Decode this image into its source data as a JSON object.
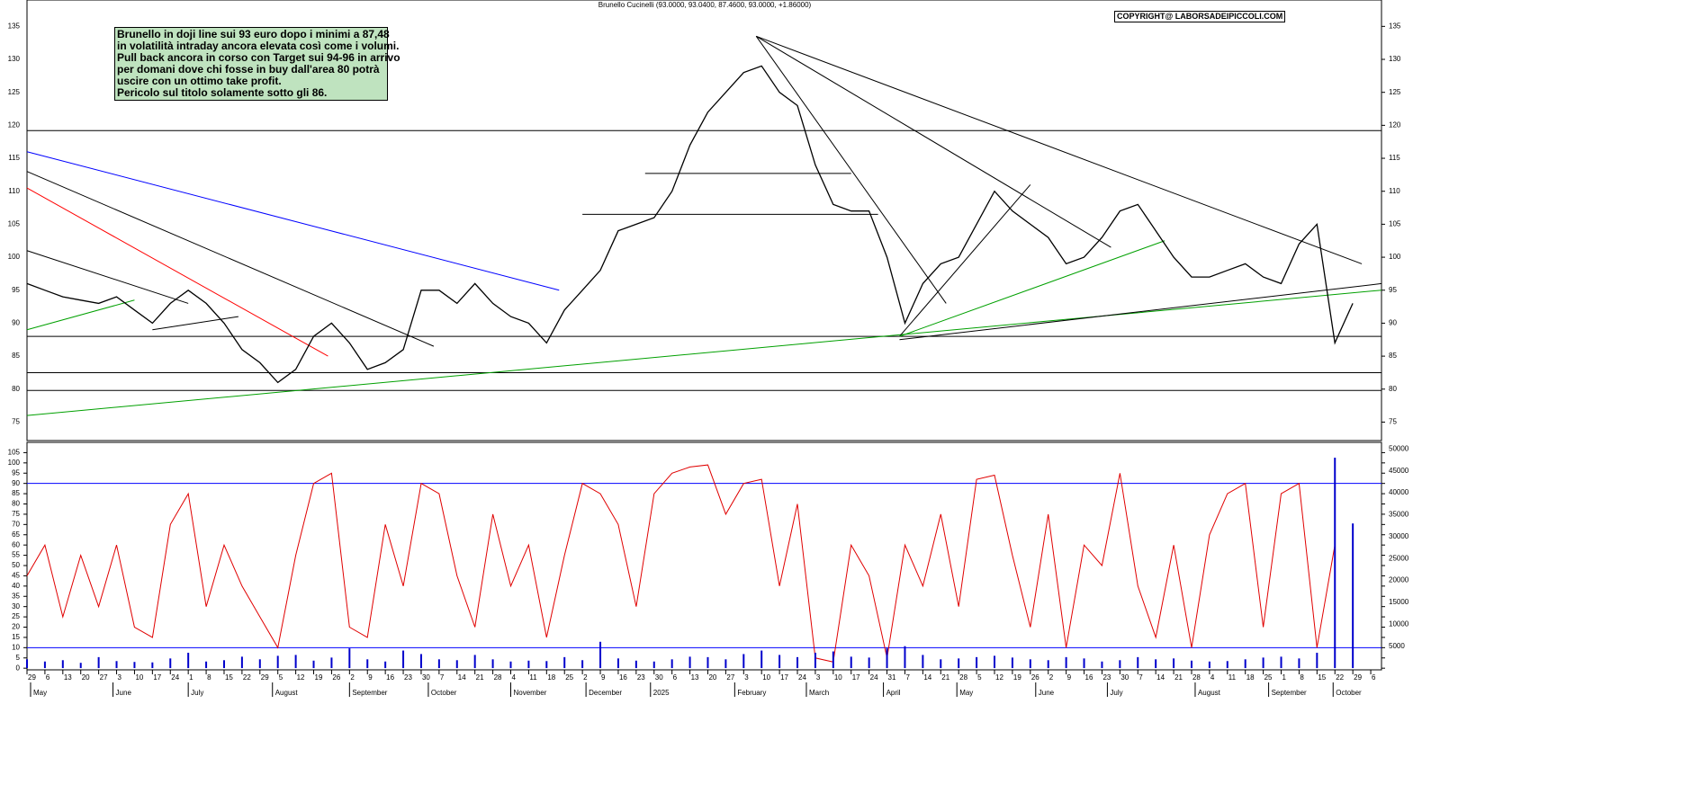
{
  "chart_data": [
    {
      "type": "line",
      "title": "Brunello Cucinelli (93.0000, 93.0400, 87.4600, 93.0000, +1.86000)",
      "copyright": "COPYRIGHT@ LABORSADEIPICCOLI.COM",
      "annotation": [
        "Brunello in doji line sui 93 euro dopo i minimi a 87,48",
        "in volatilità intraday ancora elevata così come i volumi.",
        "Pull back ancora in corso con Target sui 94-96 in arrivo",
        "per domani dove chi fosse in buy dall'area 80 potrà",
        "uscire con un ottimo take profit.",
        "Pericolo sul titolo solamente sotto gli 86."
      ],
      "color": "#000000",
      "values": [
        96,
        95,
        94,
        93.5,
        93,
        94,
        92,
        90,
        93,
        95,
        93,
        90,
        86,
        84,
        81,
        83,
        88,
        90,
        87,
        83,
        84,
        86,
        95,
        95,
        93,
        96,
        93,
        91,
        90,
        87,
        92,
        95,
        98,
        104,
        105,
        106,
        110,
        117,
        122,
        125,
        128,
        129,
        125,
        123,
        114,
        108,
        107,
        107,
        100,
        90,
        96,
        99,
        100,
        105,
        110,
        107,
        105,
        103,
        99,
        100,
        103,
        107,
        108,
        104,
        100,
        97,
        97,
        98,
        99,
        97,
        96,
        102,
        105,
        87,
        93,
        null
      ],
      "xlim": [
        0,
        75.6
      ],
      "ylim": [
        72.2,
        139
      ],
      "yticks": [
        75,
        80,
        85,
        90,
        95,
        100,
        105,
        110,
        115,
        120,
        125,
        130,
        135
      ],
      "hlines": [
        119.2,
        88,
        82.5,
        79.8
      ],
      "lines": [
        {
          "color": "#0000ff",
          "x": [
            0,
            29.7
          ],
          "y": [
            116,
            95
          ]
        },
        {
          "color": "#ff0000",
          "x": [
            0,
            16.8
          ],
          "y": [
            110.5,
            85
          ]
        },
        {
          "color": "#000000",
          "x": [
            0,
            22.7
          ],
          "y": [
            113,
            86.5
          ]
        },
        {
          "color": "#000000",
          "x": [
            0,
            9
          ],
          "y": [
            101,
            93
          ]
        },
        {
          "color": "#00a000",
          "x": [
            0,
            6
          ],
          "y": [
            89,
            93.5
          ]
        },
        {
          "color": "#00a000",
          "x": [
            0,
            75.6
          ],
          "y": [
            76,
            95
          ]
        },
        {
          "color": "#000000",
          "x": [
            7,
            11.8
          ],
          "y": [
            89,
            91
          ]
        },
        {
          "color": "#000000",
          "x": [
            34.5,
            46
          ],
          "y": [
            112.7,
            112.7
          ]
        },
        {
          "color": "#000000",
          "x": [
            31,
            47.5
          ],
          "y": [
            106.5,
            106.5
          ]
        },
        {
          "color": "#000000",
          "x": [
            40.7,
            74.5
          ],
          "y": [
            133.5,
            99
          ]
        },
        {
          "color": "#000000",
          "x": [
            40.7,
            51.3
          ],
          "y": [
            133.5,
            93
          ]
        },
        {
          "color": "#000000",
          "x": [
            40.7,
            60.5
          ],
          "y": [
            133.5,
            101.5
          ]
        },
        {
          "color": "#000000",
          "x": [
            48.7,
            56
          ],
          "y": [
            88,
            111
          ]
        },
        {
          "color": "#00a000",
          "x": [
            48.7,
            63.5
          ],
          "y": [
            88,
            102.5
          ]
        },
        {
          "color": "#000000",
          "x": [
            48.7,
            75.6
          ],
          "y": [
            87.5,
            96
          ]
        }
      ],
      "xticks": [
        {
          "value": 0,
          "label": "29"
        },
        {
          "value": 1,
          "label": "6"
        },
        {
          "value": 2,
          "label": "13"
        },
        {
          "value": 3,
          "label": "20"
        },
        {
          "value": 4,
          "label": "27"
        },
        {
          "value": 5,
          "label": "3"
        },
        {
          "value": 6,
          "label": "10"
        },
        {
          "value": 7,
          "label": "17"
        },
        {
          "value": 8,
          "label": "24"
        },
        {
          "value": 9,
          "label": "1"
        },
        {
          "value": 10,
          "label": "8"
        },
        {
          "value": 11,
          "label": "15"
        },
        {
          "value": 12,
          "label": "22"
        },
        {
          "value": 13,
          "label": "29"
        },
        {
          "value": 14,
          "label": "5"
        },
        {
          "value": 15,
          "label": "12"
        },
        {
          "value": 16,
          "label": "19"
        },
        {
          "value": 17,
          "label": "26"
        },
        {
          "value": 18,
          "label": "2"
        },
        {
          "value": 19,
          "label": "9"
        },
        {
          "value": 20,
          "label": "16"
        },
        {
          "value": 21,
          "label": "23"
        },
        {
          "value": 22,
          "label": "30"
        },
        {
          "value": 23,
          "label": "7"
        },
        {
          "value": 24,
          "label": "14"
        },
        {
          "value": 25,
          "label": "21"
        },
        {
          "value": 26,
          "label": "28"
        },
        {
          "value": 27,
          "label": "4"
        },
        {
          "value": 28,
          "label": "11"
        },
        {
          "value": 29,
          "label": "18"
        },
        {
          "value": 30,
          "label": "25"
        },
        {
          "value": 31,
          "label": "2"
        },
        {
          "value": 32,
          "label": "9"
        },
        {
          "value": 33,
          "label": "16"
        },
        {
          "value": 34,
          "label": "23"
        },
        {
          "value": 35,
          "label": "30"
        },
        {
          "value": 36,
          "label": "6"
        },
        {
          "value": 37,
          "label": "13"
        },
        {
          "value": 38,
          "label": "20"
        },
        {
          "value": 39,
          "label": "27"
        },
        {
          "value": 40,
          "label": "3"
        },
        {
          "value": 41,
          "label": "10"
        },
        {
          "value": 42,
          "label": "17"
        },
        {
          "value": 43,
          "label": "24"
        },
        {
          "value": 44,
          "label": "3"
        },
        {
          "value": 45,
          "label": "10"
        },
        {
          "value": 46,
          "label": "17"
        },
        {
          "value": 47,
          "label": "24"
        },
        {
          "value": 48,
          "label": "31"
        },
        {
          "value": 49,
          "label": "7"
        },
        {
          "value": 50,
          "label": "14"
        },
        {
          "value": 51,
          "label": "21"
        },
        {
          "value": 52,
          "label": "28"
        },
        {
          "value": 53,
          "label": "5"
        },
        {
          "value": 54,
          "label": "12"
        },
        {
          "value": 55,
          "label": "19"
        },
        {
          "value": 56,
          "label": "26"
        },
        {
          "value": 57,
          "label": "2"
        },
        {
          "value": 58,
          "label": "9"
        },
        {
          "value": 59,
          "label": "16"
        },
        {
          "value": 60,
          "label": "23"
        },
        {
          "value": 61,
          "label": "30"
        },
        {
          "value": 62,
          "label": "7"
        },
        {
          "value": 63,
          "label": "14"
        },
        {
          "value": 64,
          "label": "21"
        },
        {
          "value": 65,
          "label": "28"
        },
        {
          "value": 66,
          "label": "4"
        },
        {
          "value": 67,
          "label": "11"
        },
        {
          "value": 68,
          "label": "18"
        },
        {
          "value": 69,
          "label": "25"
        },
        {
          "value": 70,
          "label": "1"
        },
        {
          "value": 71,
          "label": "8"
        },
        {
          "value": 72,
          "label": "15"
        },
        {
          "value": 73,
          "label": "22"
        },
        {
          "value": 74,
          "label": "29"
        },
        {
          "value": 75,
          "label": "6"
        }
      ],
      "month_ticks": [
        {
          "value": 0.2,
          "label": "May"
        },
        {
          "value": 4.8,
          "label": "June"
        },
        {
          "value": 9,
          "label": "July"
        },
        {
          "value": 13.7,
          "label": "August"
        },
        {
          "value": 18,
          "label": "September"
        },
        {
          "value": 22.4,
          "label": "October"
        },
        {
          "value": 27,
          "label": "November"
        },
        {
          "value": 31.2,
          "label": "December"
        },
        {
          "value": 34.8,
          "label": "2025"
        },
        {
          "value": 39.5,
          "label": "February"
        },
        {
          "value": 43.5,
          "label": "March"
        },
        {
          "value": 47.8,
          "label": "April"
        },
        {
          "value": 51.9,
          "label": "May"
        },
        {
          "value": 56.3,
          "label": "June"
        },
        {
          "value": 60.3,
          "label": "July"
        },
        {
          "value": 65.2,
          "label": "August"
        },
        {
          "value": 69.3,
          "label": "September"
        },
        {
          "value": 72.9,
          "label": "October"
        }
      ]
    },
    {
      "type": "line",
      "xlim": [
        0,
        75.6
      ],
      "ylim": [
        -0.8,
        110
      ],
      "yticks": [
        0,
        5,
        10,
        15,
        20,
        25,
        30,
        35,
        40,
        45,
        50,
        55,
        60,
        65,
        70,
        75,
        80,
        85,
        90,
        95,
        100,
        105
      ],
      "y2lim": [
        -400,
        51500
      ],
      "y2ticks": [
        5000,
        10000,
        15000,
        20000,
        25000,
        30000,
        35000,
        40000,
        45000,
        50000
      ],
      "hlines": [
        90,
        10
      ],
      "hline_color": "#0000ff",
      "series": [
        {
          "color": "#e00000",
          "values": [
            45,
            60,
            25,
            55,
            30,
            60,
            20,
            15,
            70,
            85,
            30,
            60,
            40,
            25,
            10,
            55,
            90,
            95,
            20,
            15,
            70,
            40,
            90,
            85,
            45,
            20,
            75,
            40,
            60,
            15,
            55,
            90,
            85,
            70,
            30,
            85,
            95,
            98,
            99,
            75,
            90,
            92,
            40,
            80,
            5,
            3,
            60,
            45,
            5,
            60,
            40,
            75,
            30,
            92,
            94,
            55,
            20,
            75,
            10,
            60,
            50,
            95,
            40,
            15,
            60,
            10,
            65,
            85,
            90,
            20,
            85,
            90,
            10,
            60,
            null,
            null
          ]
        },
        {
          "color": "#0000cc",
          "axis": "y2",
          "type": "bar",
          "values": [
            2000,
            1500,
            1800,
            1200,
            2500,
            1600,
            1400,
            1300,
            2200,
            3500,
            1500,
            1800,
            2600,
            2000,
            2800,
            3000,
            1700,
            2400,
            4500,
            2000,
            1500,
            4000,
            3200,
            2000,
            1800,
            3000,
            2000,
            1500,
            1700,
            1600,
            2500,
            1800,
            6000,
            2200,
            1700,
            1500,
            2000,
            2600,
            2500,
            2000,
            3200,
            4000,
            3000,
            2500,
            3500,
            3800,
            2600,
            2400,
            4500,
            5000,
            3000,
            2000,
            2200,
            2500,
            2800,
            2400,
            2000,
            1800,
            2500,
            2200,
            1500,
            1800,
            2500,
            2000,
            2200,
            1700,
            1500,
            1600,
            2000,
            2400,
            2600,
            2200,
            3500,
            48000,
            33000,
            0
          ]
        }
      ]
    }
  ]
}
